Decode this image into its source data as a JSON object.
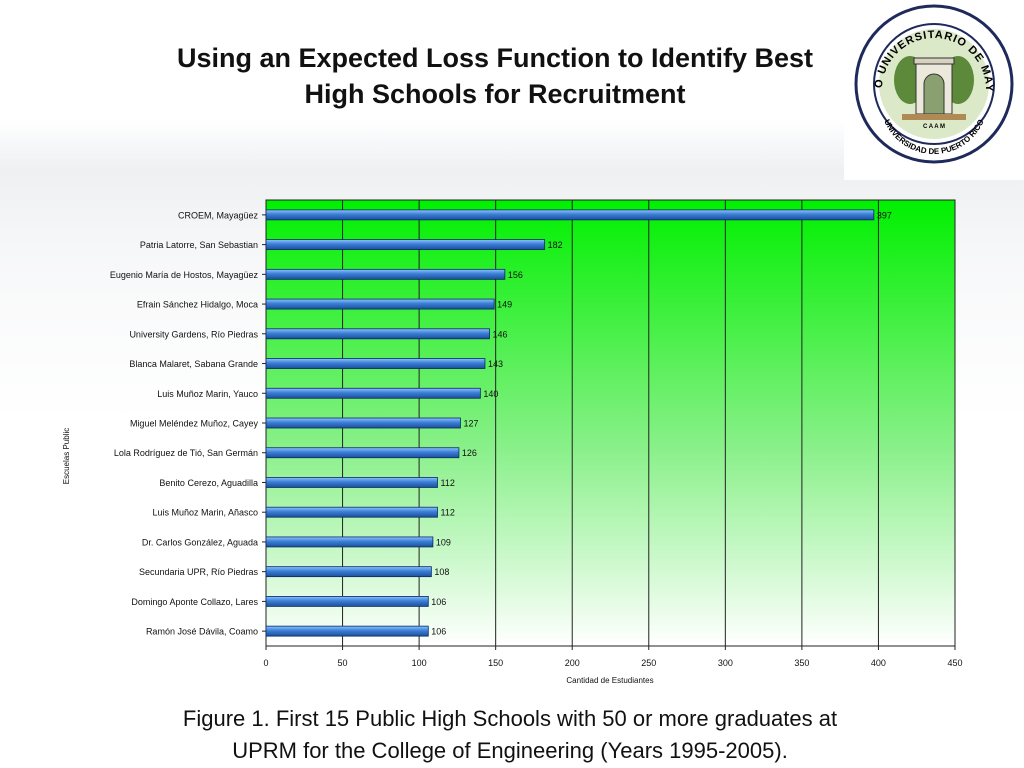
{
  "slide": {
    "title_line1": "Using an Expected Loss Function to Identify Best",
    "title_line2": "High Schools for Recruitment",
    "caption_line1": "Figure 1. First 15 Public High Schools with 50 or more graduates at",
    "caption_line2": "UPRM for the College of Engineering (Years 1995-2005)."
  },
  "logo": {
    "seal_text_top": "RECINTO UNIVERSITARIO DE MAYAGÜEZ",
    "seal_text_bottom": "UNIVERSIDAD DE PUERTO RICO",
    "seal_initials": "C A A M"
  },
  "colors": {
    "bar": "#3a7fd6",
    "bar_highlight": "#8ec2ff",
    "plot_top": "#00f000",
    "plot_bottom": "#ffffff"
  },
  "chart_data": {
    "type": "bar",
    "orientation": "horizontal",
    "categories": [
      "CROEM, Mayagüez",
      "Patria Latorre, San Sebastian",
      "Eugenio María de Hostos, Mayagüez",
      "Efrain Sánchez Hidalgo, Moca",
      "University Gardens, Río Piedras",
      "Blanca Malaret, Sabana Grande",
      "Luis Muñoz Marin, Yauco",
      "Miguel Meléndez Muñoz, Cayey",
      "Lola Rodríguez de Tió, San Germán",
      "Benito Cerezo, Aguadilla",
      "Luis Muñoz Marin, Añasco",
      "Dr. Carlos González, Aguada",
      "Secundaria UPR, Río Piedras",
      "Domingo Aponte Collazo, Lares",
      "Ramón José Dávila, Coamo"
    ],
    "values": [
      397,
      182,
      156,
      149,
      146,
      143,
      140,
      127,
      126,
      112,
      112,
      109,
      108,
      106,
      106
    ],
    "data_labels": [
      "397",
      "182",
      "156",
      "149",
      "146",
      "143",
      "140",
      "127",
      "126",
      "112",
      "112",
      "109",
      "108",
      "106",
      "106"
    ],
    "xlabel": "Cantidad de Estudiantes",
    "ylabel": "Escuelas Public",
    "xlim": [
      0,
      450
    ],
    "xticks": [
      0,
      50,
      100,
      150,
      200,
      250,
      300,
      350,
      400,
      450
    ],
    "grid": "vertical"
  }
}
